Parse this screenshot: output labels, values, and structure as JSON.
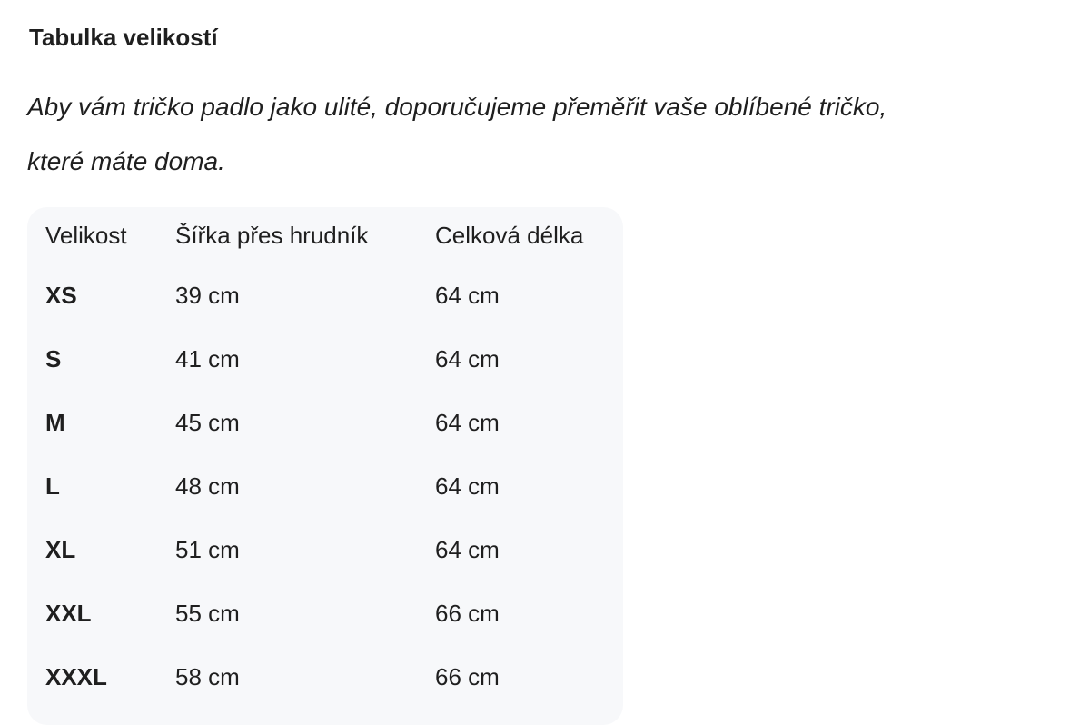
{
  "title": "Tabulka velikostí",
  "intro": [
    "Aby vám tričko padlo jako ulité, doporučujeme přeměřit vaše oblíbené tričko,",
    "které máte doma."
  ],
  "table": {
    "headers": [
      "Velikost",
      "Šířka přes hrudník",
      "Celková délka"
    ],
    "rows": [
      [
        "XS",
        "39 cm",
        "64 cm"
      ],
      [
        "S",
        "41 cm",
        "64 cm"
      ],
      [
        "M",
        "45 cm",
        "64 cm"
      ],
      [
        "L",
        "48 cm",
        "64 cm"
      ],
      [
        "XL",
        "51 cm",
        "64 cm"
      ],
      [
        "XXL",
        "55 cm",
        "66 cm"
      ],
      [
        "XXXL",
        "58 cm",
        "66 cm"
      ]
    ]
  }
}
